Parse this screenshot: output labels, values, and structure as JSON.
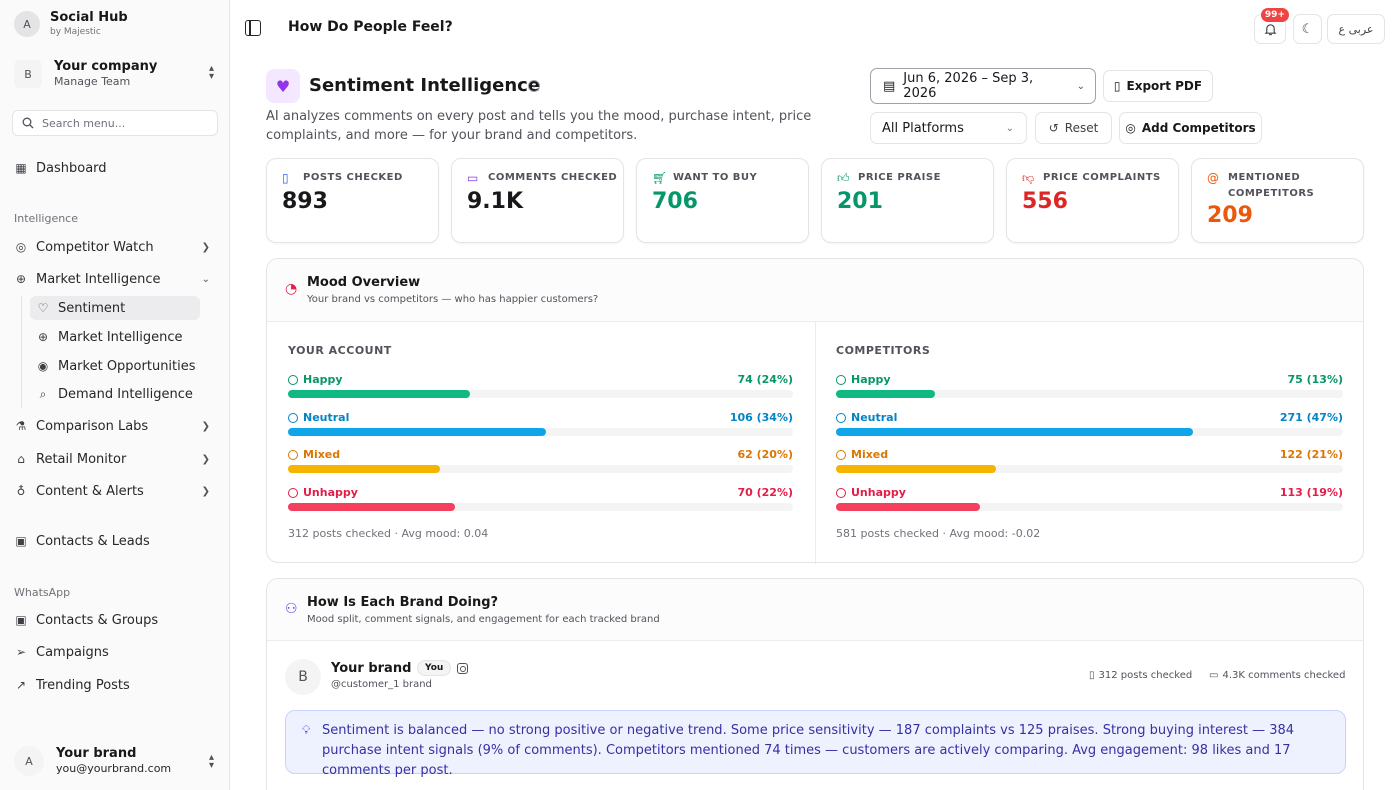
{
  "app": {
    "avatar_letter": "A",
    "name": "Social Hub",
    "by": "by Majestic"
  },
  "company": {
    "letter": "B",
    "name": "Your company",
    "sub": "Manage Team"
  },
  "search": {
    "placeholder": "Search menu..."
  },
  "nav": {
    "dashboard": "Dashboard",
    "intelligence_label": "Intelligence",
    "competitor_watch": "Competitor Watch",
    "market_intelligence": "Market Intelligence",
    "sub": {
      "sentiment": "Sentiment",
      "market_intelligence": "Market Intelligence",
      "market_opportunities": "Market Opportunities",
      "demand_intelligence": "Demand Intelligence"
    },
    "comparison_labs": "Comparison Labs",
    "retail_monitor": "Retail Monitor",
    "content_alerts": "Content & Alerts",
    "contacts_leads": "Contacts & Leads",
    "whatsapp_label": "WhatsApp",
    "contacts_groups": "Contacts & Groups",
    "campaigns": "Campaigns",
    "trending_posts": "Trending Posts"
  },
  "user": {
    "letter": "A",
    "name": "Your brand",
    "email": "you@yourbrand.com"
  },
  "topbar": {
    "title": "How Do People Feel?",
    "notif_count": "99+",
    "lang": "عربى ع"
  },
  "header": {
    "title": "Sentiment Intelligence",
    "description": "AI analyzes comments on every post and tells you the mood, purchase intent, price complaints, and more — for your brand and competitors.",
    "date_range": "Jun 6, 2026 – Sep 3, 2026",
    "export": "Export PDF",
    "platform": "All Platforms",
    "reset": "Reset",
    "add_competitors": "Add Competitors"
  },
  "stats": [
    {
      "label": "POSTS CHECKED",
      "value": "893",
      "color": "#18181b",
      "icon_color": "#2563eb"
    },
    {
      "label": "COMMENTS CHECKED",
      "value": "9.1K",
      "color": "#18181b",
      "icon_color": "#7c3aed"
    },
    {
      "label": "WANT TO BUY",
      "value": "706",
      "color": "#059669",
      "icon_color": "#059669"
    },
    {
      "label": "PRICE PRAISE",
      "value": "201",
      "color": "#059669",
      "icon_color": "#059669"
    },
    {
      "label": "PRICE COMPLAINTS",
      "value": "556",
      "color": "#dc2626",
      "icon_color": "#dc2626"
    },
    {
      "label": "MENTIONED COMPETITORS",
      "value": "209",
      "color": "#ea580c",
      "icon_color": "#ea580c"
    }
  ],
  "mood": {
    "title": "Mood Overview",
    "subtitle": "Your brand vs competitors — who has happier customers?",
    "your_account": {
      "title": "YOUR ACCOUNT",
      "rows": [
        {
          "label": "Happy",
          "value": "74 (24%)",
          "pct": 24,
          "color": "#10b981",
          "text_color": "#059669"
        },
        {
          "label": "Neutral",
          "value": "106 (34%)",
          "pct": 34,
          "color": "#0ea5e9",
          "text_color": "#0284c7"
        },
        {
          "label": "Mixed",
          "value": "62 (20%)",
          "pct": 20,
          "color": "#f5b400",
          "text_color": "#d97706"
        },
        {
          "label": "Unhappy",
          "value": "70 (22%)",
          "pct": 22,
          "color": "#f43f5e",
          "text_color": "#e11d48"
        }
      ],
      "footer": "312 posts checked · Avg mood: 0.04"
    },
    "competitors": {
      "title": "COMPETITORS",
      "rows": [
        {
          "label": "Happy",
          "value": "75 (13%)",
          "pct": 13,
          "color": "#10b981",
          "text_color": "#059669"
        },
        {
          "label": "Neutral",
          "value": "271 (47%)",
          "pct": 47,
          "color": "#0ea5e9",
          "text_color": "#0284c7"
        },
        {
          "label": "Mixed",
          "value": "122 (21%)",
          "pct": 21,
          "color": "#f5b400",
          "text_color": "#d97706"
        },
        {
          "label": "Unhappy",
          "value": "113 (19%)",
          "pct": 19,
          "color": "#f43f5e",
          "text_color": "#e11d48"
        }
      ],
      "footer": "581 posts checked · Avg mood: -0.02"
    }
  },
  "brands": {
    "title": "How Is Each Brand Doing?",
    "subtitle": "Mood split, comment signals, and engagement for each tracked brand",
    "brand": {
      "letter": "B",
      "name": "Your brand",
      "badge": "You",
      "handle": "@customer_1 brand",
      "posts": "312 posts checked",
      "comments": "4.3K comments checked",
      "insight": "Sentiment is balanced — no strong positive or negative trend. Some price sensitivity — 187 complaints vs 125 praises. Strong buying interest — 384 purchase intent signals (9% of comments). Competitors mentioned 74 times — customers are actively comparing. Avg engagement: 98 likes and 17 comments per post."
    }
  }
}
